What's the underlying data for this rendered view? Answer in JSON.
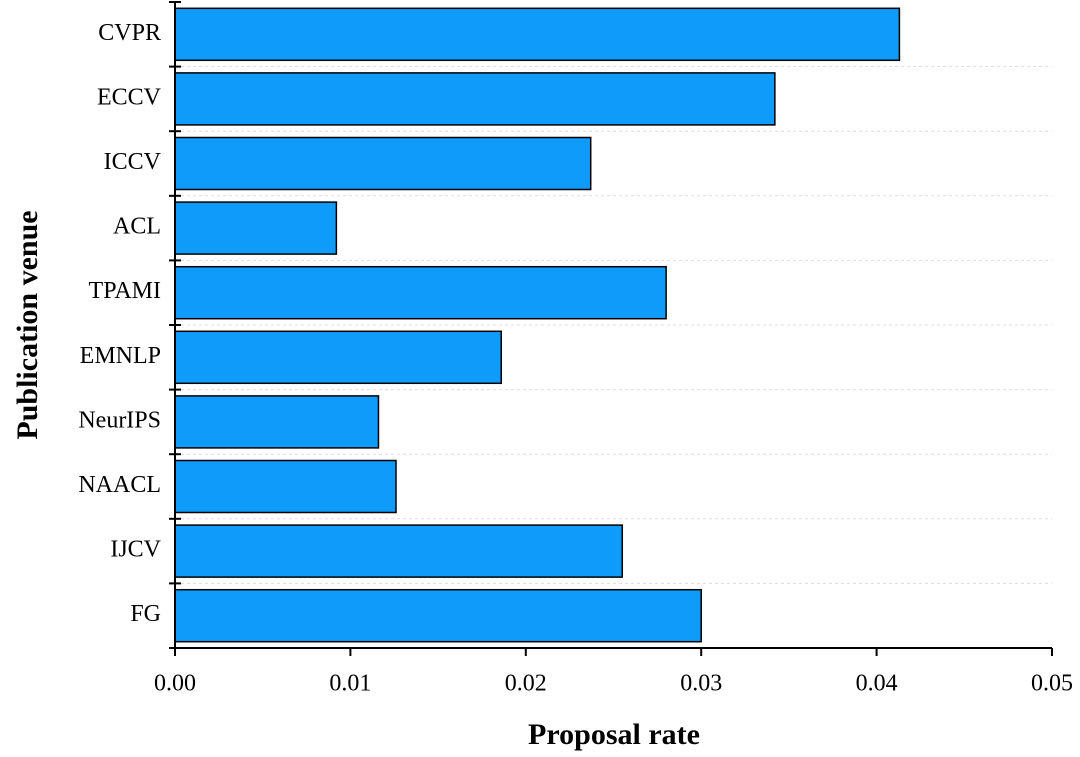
{
  "chart_data": {
    "type": "bar",
    "orientation": "horizontal",
    "categories": [
      "CVPR",
      "ECCV",
      "ICCV",
      "ACL",
      "TPAMI",
      "EMNLP",
      "NeurIPS",
      "NAACL",
      "IJCV",
      "FG"
    ],
    "values": [
      0.0413,
      0.0342,
      0.0237,
      0.0092,
      0.028,
      0.0186,
      0.0116,
      0.0126,
      0.0255,
      0.03
    ],
    "color": "#0f9bfa",
    "x_label": "Proposal rate",
    "y_label": "Publication venue",
    "xlim": [
      0,
      0.05
    ],
    "xticks": [
      {
        "value": 0,
        "label": "0.00"
      },
      0.01,
      0.02,
      0.03,
      0.04,
      0.05
    ]
  }
}
